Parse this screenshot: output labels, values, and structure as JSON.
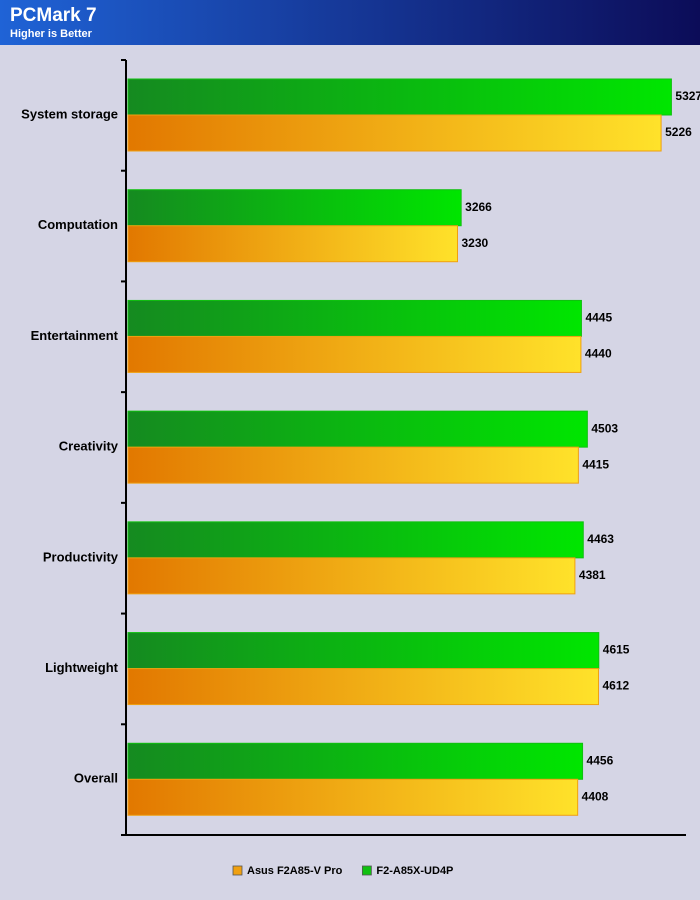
{
  "chart_data": {
    "type": "hbar",
    "title": "PCMark 7",
    "subtitle": "Higher is Better",
    "categories": [
      "System storage",
      "Computation",
      "Entertainment",
      "Creativity",
      "Productivity",
      "Lightweight",
      "Overall"
    ],
    "series": [
      {
        "name": "Asus F2A85-V Pro",
        "color": "#f0a010",
        "values": [
          5226,
          3230,
          4440,
          4415,
          4381,
          4612,
          4408
        ]
      },
      {
        "name": "F2-A85X-UD4P",
        "color": "#10c010",
        "values": [
          5327,
          3266,
          4445,
          4503,
          4463,
          4615,
          4456
        ]
      }
    ],
    "xlim": [
      0,
      5470
    ]
  }
}
